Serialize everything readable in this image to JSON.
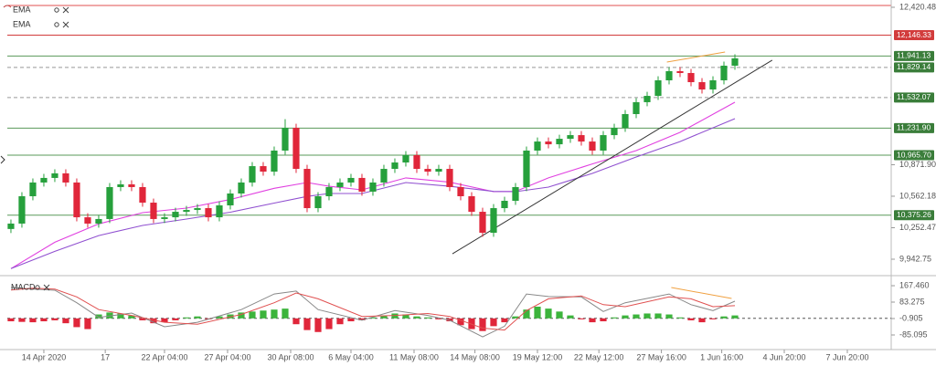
{
  "chart_data": {
    "type": "candlestick",
    "open": [
      10240,
      10293,
      10562,
      10697,
      10742,
      10787,
      10697,
      10355,
      10293,
      10338,
      10652,
      10679,
      10652,
      10499,
      10338,
      10355,
      10409,
      10427,
      10445,
      10355,
      10472,
      10589,
      10697,
      10858,
      10804,
      11011,
      11235,
      10831,
      10445,
      10562,
      10652,
      10697,
      10742,
      10607,
      10697,
      10831,
      10894,
      10966,
      10831,
      10804,
      10831,
      10652,
      10562,
      10409,
      10203,
      10445,
      10517,
      10652,
      11011,
      11100,
      11073,
      11127,
      11163,
      11100,
      11011,
      11163,
      11235,
      11370,
      11487,
      11549,
      11702,
      11792,
      11774,
      11684,
      11612,
      11702,
      11846
    ],
    "high": [
      10333,
      10602,
      10737,
      10782,
      10827,
      10827,
      10737,
      10395,
      10378,
      10692,
      10719,
      10719,
      10692,
      10539,
      10395,
      10449,
      10467,
      10485,
      10485,
      10512,
      10629,
      10737,
      10898,
      10898,
      11051,
      11320,
      11275,
      10871,
      10602,
      10692,
      10737,
      10782,
      10782,
      10737,
      10871,
      10934,
      11006,
      11006,
      10871,
      10871,
      10871,
      10692,
      10602,
      10449,
      10485,
      10557,
      10692,
      11051,
      11140,
      11140,
      11167,
      11203,
      11203,
      11140,
      11203,
      11275,
      11410,
      11527,
      11589,
      11742,
      11832,
      11832,
      11814,
      11724,
      11742,
      11886,
      11958
    ],
    "low": [
      10200,
      10253,
      10522,
      10657,
      10702,
      10657,
      10315,
      10253,
      10253,
      10298,
      10612,
      10612,
      10459,
      10298,
      10298,
      10315,
      10369,
      10387,
      10315,
      10315,
      10432,
      10549,
      10657,
      10764,
      10764,
      10971,
      10791,
      10405,
      10405,
      10522,
      10612,
      10657,
      10567,
      10567,
      10657,
      10791,
      10854,
      10791,
      10764,
      10764,
      10612,
      10522,
      10369,
      10163,
      10163,
      10405,
      10477,
      10612,
      10971,
      11033,
      11033,
      11087,
      11060,
      10971,
      10971,
      11123,
      11195,
      11330,
      11447,
      11509,
      11662,
      11734,
      11644,
      11572,
      11572,
      11662,
      11806
    ],
    "close": [
      10293,
      10562,
      10697,
      10742,
      10787,
      10697,
      10355,
      10293,
      10338,
      10652,
      10679,
      10652,
      10499,
      10338,
      10355,
      10409,
      10427,
      10445,
      10355,
      10472,
      10589,
      10697,
      10858,
      10804,
      11011,
      11235,
      10831,
      10445,
      10562,
      10652,
      10697,
      10742,
      10607,
      10697,
      10831,
      10894,
      10966,
      10831,
      10804,
      10831,
      10652,
      10562,
      10409,
      10203,
      10445,
      10517,
      10652,
      11011,
      11100,
      11073,
      11127,
      11163,
      11100,
      11011,
      11163,
      11235,
      11370,
      11487,
      11549,
      11702,
      11792,
      11774,
      11684,
      11612,
      11702,
      11846,
      11918
    ],
    "up_color": "#26a03c",
    "down_color": "#e0263a",
    "xlim": [
      -0.33,
      80.25
    ],
    "xticks": [
      {
        "value": 3,
        "label": "14 Apr 2020"
      },
      {
        "value": 8.6,
        "label": "17"
      },
      {
        "value": 14,
        "label": "22 Apr 04:00"
      },
      {
        "value": 19.75,
        "label": "27 Apr 04:00"
      },
      {
        "value": 25.5,
        "label": "30 Apr 08:00"
      },
      {
        "value": 31,
        "label": "6 May 04:00"
      },
      {
        "value": 36.75,
        "label": "11 May 08:00"
      },
      {
        "value": 42.3,
        "label": "14 May 08:00"
      },
      {
        "value": 48,
        "label": "19 May 12:00"
      },
      {
        "value": 53.6,
        "label": "22 May 12:00"
      },
      {
        "value": 59.3,
        "label": "27 May 16:00"
      },
      {
        "value": 64.8,
        "label": "1 Jun 16:00"
      },
      {
        "value": 70.5,
        "label": "4 Jun 20:00"
      },
      {
        "value": 76.25,
        "label": "7 Jun 20:00"
      }
    ],
    "ylim": [
      9799,
      12492
    ],
    "yticks": [
      {
        "value": 12420.48,
        "label": "12,420.48"
      },
      {
        "value": 10871.9,
        "label": "10,871.90"
      },
      {
        "value": 10562.18,
        "label": "10,562.18"
      },
      {
        "value": 10252.47,
        "label": "10,252.47"
      },
      {
        "value": 9942.75,
        "label": "9,942.75"
      }
    ],
    "series": [
      {
        "name": "EMA",
        "color": "#e040e0",
        "x": [
          0,
          4,
          8,
          12,
          16,
          20,
          24,
          27,
          29,
          32,
          36,
          40,
          44,
          46,
          49,
          53,
          57,
          61,
          66
        ],
        "values": [
          9850,
          10110,
          10290,
          10400,
          10445,
          10530,
          10640,
          10697,
          10660,
          10625,
          10742,
          10700,
          10607,
          10610,
          10742,
          10880,
          11011,
          11190,
          11487
        ]
      },
      {
        "name": "EMA",
        "color": "#9050d0",
        "x": [
          0,
          4,
          8,
          12,
          16,
          20,
          24,
          27,
          29,
          32,
          36,
          40,
          44,
          46,
          49,
          53,
          57,
          61,
          66
        ],
        "values": [
          9850,
          10020,
          10175,
          10275,
          10338,
          10405,
          10495,
          10560,
          10589,
          10589,
          10697,
          10660,
          10610,
          10607,
          10652,
          10786,
          10948,
          11100,
          11325
        ]
      }
    ],
    "levels": [
      {
        "value": 12146.33,
        "label": "12,146.33",
        "color": "#d23c3c",
        "box": "#d23c3c",
        "dash": false
      },
      {
        "value": 11941.13,
        "label": "11,941.13",
        "color": "#5a9a5a",
        "box": "#3a7d3a",
        "dash": false
      },
      {
        "value": 11829.14,
        "label": "11,829.14",
        "color": "#999999",
        "box": "#3a7d3a",
        "dash": true
      },
      {
        "value": 11532.07,
        "label": "11,532.07",
        "color": "#999999",
        "box": "#3a7d3a",
        "dash": true
      },
      {
        "value": 11231.9,
        "label": "11,231.90",
        "color": "#5a9a5a",
        "box": "#3a7d3a",
        "dash": false
      },
      {
        "value": 10965.7,
        "label": "10,965.70",
        "color": "#5a9a5a",
        "box": "#3a7d3a",
        "dash": false
      },
      {
        "value": 10375.26,
        "label": "10,375.26",
        "color": "#5a9a5a",
        "box": "#3a7d3a",
        "dash": false
      }
    ],
    "trendlines": [
      {
        "color": "#333333",
        "points": [
          [
            40.25,
            9996
          ],
          [
            69.4,
            11900
          ]
        ]
      },
      {
        "color": "#f0a040",
        "points": [
          [
            59.8,
            11882
          ],
          [
            65.1,
            11980
          ]
        ]
      }
    ],
    "macd": {
      "name": "MACD",
      "ylim": [
        -160,
        205
      ],
      "yticks": [
        {
          "value": 167.46,
          "label": "167.460"
        },
        83.275,
        -0.905,
        -85.095
      ],
      "pos_color": "#3cb43c",
      "neg_color": "#e0263a",
      "histogram": [
        -15,
        -18,
        -20,
        -15,
        -10,
        -25,
        -45,
        -55,
        20,
        30,
        25,
        15,
        -10,
        -25,
        -20,
        -10,
        5,
        10,
        -5,
        10,
        20,
        30,
        35,
        40,
        45,
        50,
        -30,
        -60,
        -70,
        -55,
        -30,
        -15,
        -10,
        5,
        15,
        25,
        20,
        10,
        5,
        -5,
        -15,
        -35,
        -55,
        -65,
        -40,
        -20,
        10,
        45,
        60,
        50,
        35,
        15,
        -5,
        -20,
        -15,
        5,
        15,
        20,
        25,
        25,
        20,
        5,
        -10,
        -20,
        -5,
        10,
        15
      ],
      "x": [
        0,
        2,
        4,
        6,
        8,
        11,
        14,
        17,
        21,
        24,
        26,
        28,
        32,
        35,
        38,
        40,
        43,
        45,
        47,
        49,
        52,
        54,
        56,
        60,
        62,
        64,
        66
      ],
      "macd_line": [
        158,
        150,
        144,
        80,
        5,
        27,
        -43,
        -20,
        45,
        125,
        140,
        45,
        -10,
        40,
        15,
        -10,
        -95,
        -40,
        125,
        112,
        110,
        35,
        80,
        125,
        70,
        40,
        88
      ],
      "signal_line": [
        145,
        155,
        150,
        110,
        45,
        15,
        -20,
        -30,
        20,
        80,
        130,
        100,
        10,
        15,
        25,
        10,
        -50,
        -60,
        40,
        100,
        115,
        70,
        60,
        110,
        100,
        60,
        65
      ],
      "macd_color": "#888888",
      "signal_color": "#e05050",
      "trendlines": [
        {
          "color": "#f0a040",
          "points": [
            [
              60.2,
              158
            ],
            [
              65.7,
              102
            ]
          ]
        }
      ]
    }
  }
}
